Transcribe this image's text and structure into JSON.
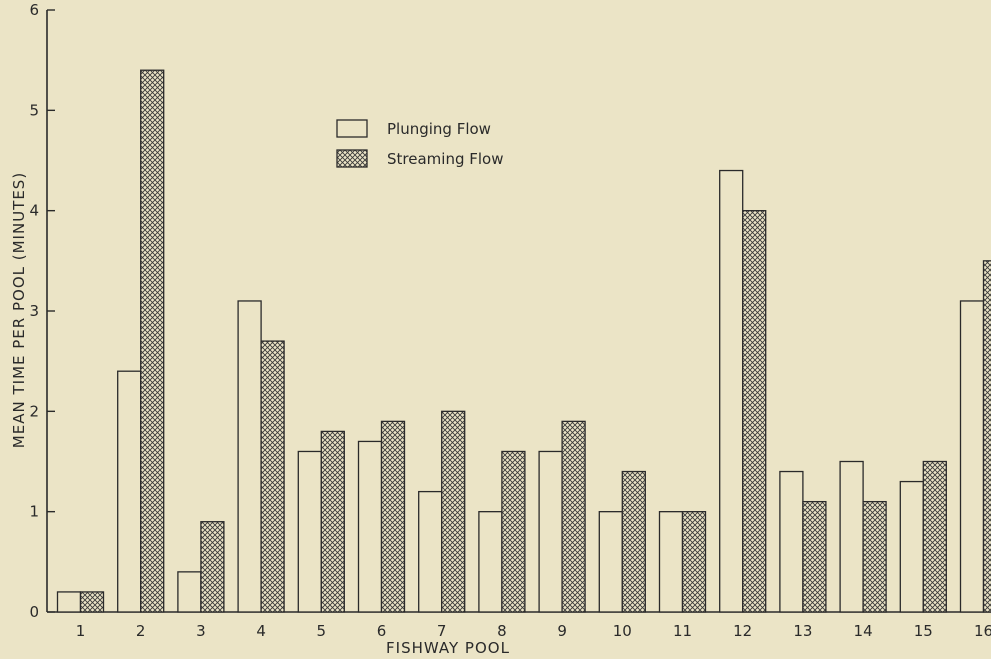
{
  "chart_data": {
    "type": "bar",
    "xlabel": "FISHWAY POOL",
    "ylabel": "MEAN TIME PER POOL (MINUTES)",
    "ylim": [
      0,
      6
    ],
    "yticks": [
      "0",
      "1",
      "2",
      "3",
      "4",
      "5",
      "6"
    ],
    "categories": [
      "1",
      "2",
      "3",
      "4",
      "5",
      "6",
      "7",
      "8",
      "9",
      "10",
      "11",
      "12",
      "13",
      "14",
      "15",
      "16"
    ],
    "series": [
      {
        "name": "Plunging Flow",
        "fill": "plain",
        "values": [
          0.2,
          2.4,
          0.4,
          3.1,
          1.6,
          1.7,
          1.2,
          1.0,
          1.6,
          1.0,
          1.0,
          4.4,
          1.4,
          1.5,
          1.3,
          3.1
        ]
      },
      {
        "name": "Streaming Flow",
        "fill": "crosshatch",
        "values": [
          0.2,
          5.4,
          0.9,
          2.7,
          1.8,
          1.9,
          2.0,
          1.6,
          1.9,
          1.4,
          1.0,
          4.0,
          1.1,
          1.1,
          1.5,
          3.5
        ]
      }
    ],
    "legend_position": "top-center",
    "grid": false,
    "colors": {
      "background": "#ebe4c6",
      "ink": "#2a2a2a"
    }
  }
}
